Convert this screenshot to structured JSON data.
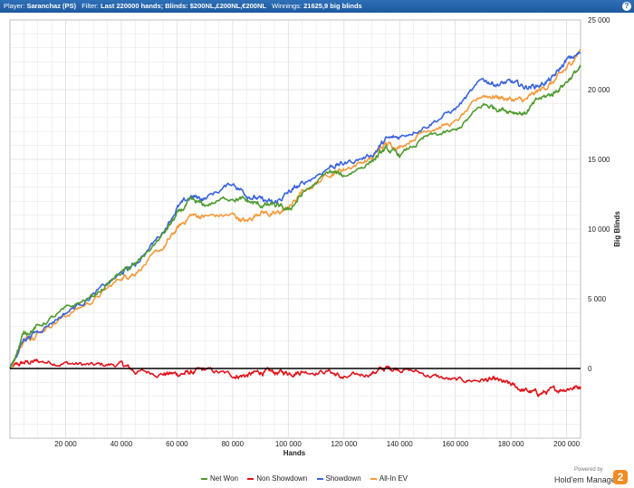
{
  "header": {
    "player_label": "Player:",
    "player_value": "Saranchaz (PS)",
    "filter_label": "Filter:",
    "filter_value": "Last 220000 hands; Blinds: $200NL,£200NL,€200NL",
    "winnings_label": "Winnings:",
    "winnings_value": "21625,9 big blinds",
    "help_icon": "?"
  },
  "branding": {
    "powered_by": "Powered by",
    "name": "Hold'em Manager",
    "logo_text": "2"
  },
  "colors": {
    "net_won": "#4f9a2e",
    "non_showdown": "#e3131b",
    "showdown": "#3a64dd",
    "allin_ev": "#f49a3c",
    "zero_line": "#000000",
    "grid": "#dcdcdc"
  },
  "chart_data": {
    "type": "line",
    "xlabel": "Hands",
    "ylabel": "Big Blinds",
    "xlim": [
      0,
      205000
    ],
    "ylim": [
      -5000,
      25000
    ],
    "x_ticks": [
      20000,
      40000,
      60000,
      80000,
      100000,
      120000,
      140000,
      160000,
      180000,
      200000
    ],
    "x_tick_labels": [
      "20 000",
      "40 000",
      "60 000",
      "80 000",
      "100 000",
      "120 000",
      "140 000",
      "160 000",
      "180 000",
      "200 000"
    ],
    "y_ticks": [
      0,
      5000,
      10000,
      15000,
      20000,
      25000
    ],
    "y_tick_labels": [
      "0",
      "5 000",
      "10 000",
      "15 000",
      "20 000",
      "25 000"
    ],
    "grid": true,
    "legend_position": "bottom",
    "x": [
      0,
      5000,
      10000,
      20000,
      30000,
      40000,
      45000,
      55000,
      60000,
      65000,
      70000,
      80000,
      85000,
      90000,
      95000,
      100000,
      105000,
      115000,
      120000,
      130000,
      135000,
      140000,
      150000,
      160000,
      170000,
      175000,
      180000,
      185000,
      190000,
      195000,
      200000,
      205000
    ],
    "series": [
      {
        "name": "Net Won",
        "values": [
          0,
          2500,
          3000,
          4200,
          5200,
          6900,
          7400,
          9600,
          11000,
          12000,
          11700,
          12300,
          12000,
          11700,
          11700,
          11300,
          12500,
          14100,
          13800,
          14900,
          15700,
          15300,
          16600,
          17000,
          18900,
          18700,
          18500,
          18300,
          19300,
          19700,
          20600,
          21600
        ]
      },
      {
        "name": "Non Showdown",
        "values": [
          0,
          400,
          500,
          400,
          200,
          300,
          -200,
          -350,
          -400,
          -300,
          -100,
          -500,
          -500,
          -250,
          -300,
          -300,
          -200,
          -200,
          -750,
          -300,
          0,
          50,
          -450,
          -900,
          -800,
          -900,
          -1200,
          -1600,
          -1800,
          -1600,
          -1400,
          -1300
        ]
      },
      {
        "name": "Showdown",
        "values": [
          0,
          2100,
          2700,
          4000,
          5300,
          6800,
          7500,
          9800,
          11500,
          12300,
          12200,
          13300,
          12500,
          12100,
          11800,
          12600,
          13200,
          14500,
          14700,
          15300,
          16400,
          16600,
          17500,
          18600,
          20700,
          20400,
          20500,
          20200,
          20300,
          20800,
          22100,
          22600
        ]
      },
      {
        "name": "All-In EV",
        "values": [
          0,
          2000,
          2600,
          3800,
          4900,
          6500,
          6900,
          8600,
          10000,
          11000,
          10900,
          11000,
          10500,
          11300,
          11000,
          11500,
          12600,
          14000,
          14300,
          15100,
          16100,
          15900,
          17200,
          17600,
          19600,
          19500,
          19300,
          19200,
          19900,
          20500,
          21500,
          22900
        ]
      }
    ]
  }
}
